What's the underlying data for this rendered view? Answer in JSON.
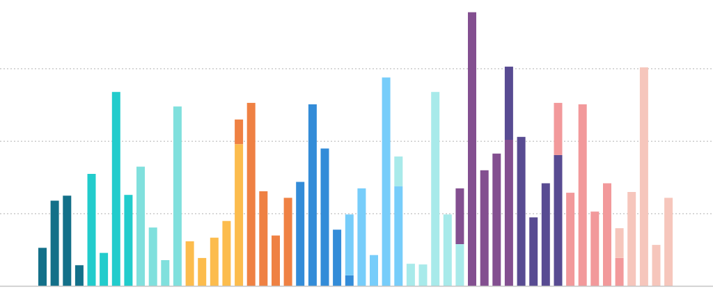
{
  "chart_data": {
    "type": "bar",
    "stacked": true,
    "grid": true,
    "ylim": [
      0,
      3.95
    ],
    "gridlines_at": [
      1,
      2,
      3
    ],
    "title": "",
    "xlabel": "",
    "ylabel": "",
    "colors": {
      "teal": "#137089",
      "cyan": "#22cccc",
      "aqua": "#80e0dd",
      "yellow": "#fcbc4d",
      "orange": "#ef8143",
      "blue": "#338cd8",
      "sky": "#77cdfa",
      "pale": "#a8eaea",
      "purple": "#834f90",
      "indigo": "#584b92",
      "pink": "#f2999b",
      "peach": "#f6c6bc"
    },
    "bars": [
      [
        {
          "v": 0.53,
          "c": "teal"
        }
      ],
      [
        {
          "v": 1.18,
          "c": "teal"
        }
      ],
      [
        {
          "v": 1.25,
          "c": "teal"
        }
      ],
      [
        {
          "v": 0.29,
          "c": "teal"
        }
      ],
      [
        {
          "v": 1.55,
          "c": "cyan"
        }
      ],
      [
        {
          "v": 0.46,
          "c": "cyan"
        }
      ],
      [
        {
          "v": 2.68,
          "c": "cyan"
        }
      ],
      [
        {
          "v": 1.26,
          "c": "cyan"
        }
      ],
      [
        {
          "v": 1.65,
          "c": "aqua"
        }
      ],
      [
        {
          "v": 0.81,
          "c": "aqua"
        }
      ],
      [
        {
          "v": 0.36,
          "c": "aqua"
        }
      ],
      [
        {
          "v": 2.48,
          "c": "aqua"
        }
      ],
      [
        {
          "v": 0.62,
          "c": "yellow"
        }
      ],
      [
        {
          "v": 0.39,
          "c": "yellow"
        }
      ],
      [
        {
          "v": 0.67,
          "c": "yellow"
        }
      ],
      [
        {
          "v": 0.9,
          "c": "yellow"
        }
      ],
      [
        {
          "v": 1.96,
          "c": "yellow"
        },
        {
          "v": 0.34,
          "c": "orange"
        }
      ],
      [
        {
          "v": 2.53,
          "c": "orange"
        }
      ],
      [
        {
          "v": 1.31,
          "c": "orange"
        }
      ],
      [
        {
          "v": 0.7,
          "c": "orange"
        }
      ],
      [
        {
          "v": 1.22,
          "c": "orange"
        }
      ],
      [
        {
          "v": 1.44,
          "c": "blue"
        }
      ],
      [
        {
          "v": 2.51,
          "c": "blue"
        }
      ],
      [
        {
          "v": 1.9,
          "c": "blue"
        }
      ],
      [
        {
          "v": 0.78,
          "c": "blue"
        }
      ],
      [
        {
          "v": 0.15,
          "c": "blue"
        },
        {
          "v": 0.84,
          "c": "sky"
        }
      ],
      [
        {
          "v": 1.35,
          "c": "sky"
        }
      ],
      [
        {
          "v": 0.43,
          "c": "sky"
        }
      ],
      [
        {
          "v": 2.88,
          "c": "sky"
        }
      ],
      [
        {
          "v": 1.38,
          "c": "sky"
        },
        {
          "v": 0.41,
          "c": "pale"
        }
      ],
      [
        {
          "v": 0.31,
          "c": "pale"
        }
      ],
      [
        {
          "v": 0.3,
          "c": "pale"
        }
      ],
      [
        {
          "v": 2.68,
          "c": "pale"
        }
      ],
      [
        {
          "v": 0.99,
          "c": "pale"
        }
      ],
      [
        {
          "v": 0.58,
          "c": "pale"
        },
        {
          "v": 0.77,
          "c": "purple"
        }
      ],
      [
        {
          "v": 3.78,
          "c": "purple"
        }
      ],
      [
        {
          "v": 1.6,
          "c": "purple"
        }
      ],
      [
        {
          "v": 1.83,
          "c": "purple"
        }
      ],
      [
        {
          "v": 2.02,
          "c": "purple"
        },
        {
          "v": 1.01,
          "c": "indigo"
        }
      ],
      [
        {
          "v": 2.06,
          "c": "indigo"
        }
      ],
      [
        {
          "v": 0.95,
          "c": "indigo"
        }
      ],
      [
        {
          "v": 1.42,
          "c": "indigo"
        }
      ],
      [
        {
          "v": 1.81,
          "c": "indigo"
        },
        {
          "v": 0.72,
          "c": "pink"
        }
      ],
      [
        {
          "v": 1.29,
          "c": "pink"
        }
      ],
      [
        {
          "v": 2.51,
          "c": "pink"
        }
      ],
      [
        {
          "v": 1.03,
          "c": "pink"
        }
      ],
      [
        {
          "v": 1.42,
          "c": "pink"
        }
      ],
      [
        {
          "v": 0.39,
          "c": "pink"
        },
        {
          "v": 0.41,
          "c": "peach"
        }
      ],
      [
        {
          "v": 1.3,
          "c": "peach"
        }
      ],
      [
        {
          "v": 3.02,
          "c": "peach"
        }
      ],
      [
        {
          "v": 0.57,
          "c": "peach"
        }
      ],
      [
        {
          "v": 1.22,
          "c": "peach"
        }
      ]
    ]
  }
}
